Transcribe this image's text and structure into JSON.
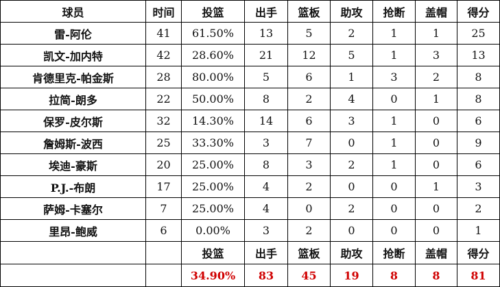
{
  "headers": [
    "球员",
    "时间",
    "投篮",
    "出手",
    "篮板",
    "助攻",
    "抢断",
    "盖帽",
    "得分"
  ],
  "rows": [
    [
      "雷-阿伦",
      "41",
      "61.50%",
      "13",
      "5",
      "2",
      "1",
      "1",
      "25"
    ],
    [
      "凯文-加内特",
      "42",
      "28.60%",
      "21",
      "12",
      "5",
      "1",
      "3",
      "13"
    ],
    [
      "肯德里克-帕金斯",
      "28",
      "80.00%",
      "5",
      "6",
      "1",
      "3",
      "2",
      "8"
    ],
    [
      "拉简-朗多",
      "22",
      "50.00%",
      "8",
      "2",
      "4",
      "0",
      "1",
      "8"
    ],
    [
      "保罗-皮尔斯",
      "32",
      "14.30%",
      "14",
      "6",
      "3",
      "1",
      "0",
      "6"
    ],
    [
      "詹姆斯-波西",
      "25",
      "33.30%",
      "3",
      "7",
      "0",
      "1",
      "0",
      "9"
    ],
    [
      "埃迪-豪斯",
      "20",
      "25.00%",
      "8",
      "3",
      "2",
      "1",
      "0",
      "6"
    ],
    [
      "P.J.-布朗",
      "17",
      "25.00%",
      "4",
      "2",
      "0",
      "0",
      "1",
      "3"
    ],
    [
      "萨姆-卡塞尔",
      "7",
      "25.00%",
      "4",
      "0",
      "2",
      "0",
      "0",
      "2"
    ],
    [
      "里昂-鲍威",
      "6",
      "0.00%",
      "3",
      "2",
      "0",
      "0",
      "0",
      "1"
    ]
  ],
  "totals_headers": [
    "投篮",
    "出手",
    "篮板",
    "助攻",
    "抢断",
    "盖帽",
    "得分"
  ],
  "totals": [
    "34.90%",
    "83",
    "45",
    "19",
    "8",
    "8",
    "81"
  ],
  "colors": {
    "totals": "#d00000"
  }
}
